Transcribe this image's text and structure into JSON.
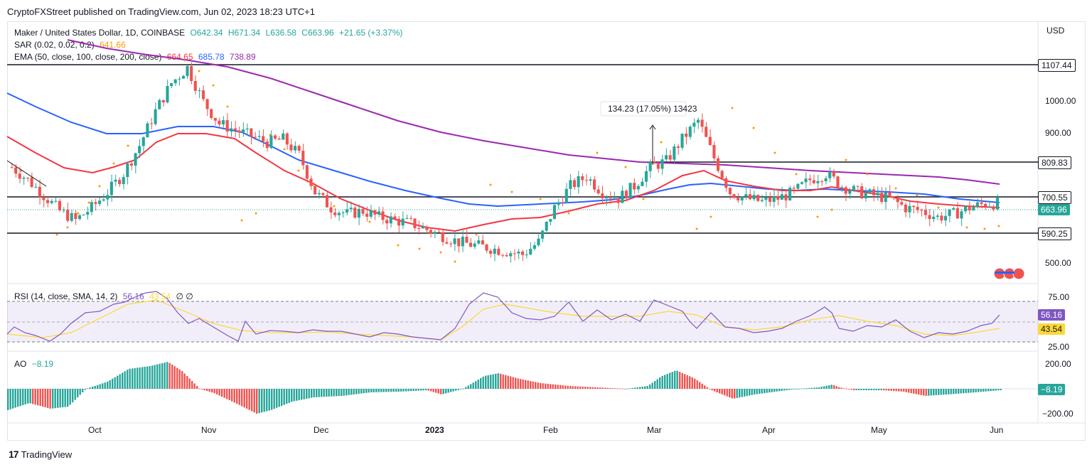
{
  "header": {
    "published": "CryptoFXStreet published on TradingView.com, Jun 02, 2023 18:23 UTC+1"
  },
  "symbol": {
    "name": "Maker / United States Dollar, 1D, COINBASE",
    "o": "O642.34",
    "h": "H671.34",
    "l": "L636.58",
    "c": "C663.96",
    "chg": "+21.65 (+3.37%)"
  },
  "sar": {
    "label": "SAR (0.02, 0.02, 0.2)",
    "value": "641.66"
  },
  "ema": {
    "label": "EMA (50, close, 100, close, 200, close)",
    "v50": "664.65",
    "v100": "685.78",
    "v200": "738.89"
  },
  "axis": {
    "currency": "USD",
    "price_ticks": [
      "1000.00",
      "900.00",
      "500.00"
    ],
    "rsi_ticks": [
      "75.00",
      "25.00"
    ],
    "ao_ticks": [
      "200.00",
      "−200.00"
    ],
    "months": [
      "Oct",
      "Nov",
      "Dec",
      "2023",
      "Feb",
      "Mar",
      "Apr",
      "May",
      "Jun"
    ]
  },
  "levels": {
    "l1": "1107.44",
    "l2": "809.83",
    "l3": "700.55",
    "l4": "590.25",
    "last": "663.96"
  },
  "measure": {
    "text": "134.23 (17.05%) 13423"
  },
  "rsi": {
    "label": "RSI (14, close, SMA, 14, 2)",
    "v": "56.16",
    "sma": "43.54",
    "extra": "∅ ∅",
    "tag1": "56.16",
    "tag2": "43.54"
  },
  "ao": {
    "label": "AO",
    "v": "−8.19",
    "tag": "−8.19"
  },
  "footer": {
    "brand": "TradingView"
  },
  "colors": {
    "up": "#26a69a",
    "down": "#ef5350",
    "ema50": "#f23645",
    "ema100": "#2962ff",
    "ema200": "#9c27b0",
    "sar": "#ff9800",
    "rsi": "#7e57c2",
    "rsi_sma": "#fdd835"
  },
  "chart_data": {
    "type": "candlestick",
    "x_range": [
      "2023-09-10",
      "2023-06-05"
    ],
    "ylim": [
      450,
      1180
    ],
    "closes": [
      780,
      740,
      690,
      640,
      610,
      650,
      700,
      760,
      850,
      960,
      1050,
      1100,
      990,
      920,
      900,
      880,
      860,
      870,
      820,
      700,
      650,
      630,
      640,
      620,
      610,
      600,
      580,
      560,
      540,
      530,
      520,
      510,
      500,
      540,
      650,
      720,
      750,
      700,
      680,
      720,
      780,
      800,
      870,
      930,
      810,
      700,
      680,
      670,
      680,
      700,
      740,
      760,
      720,
      700,
      690,
      680,
      650,
      640,
      620,
      630,
      650,
      664
    ]
  }
}
